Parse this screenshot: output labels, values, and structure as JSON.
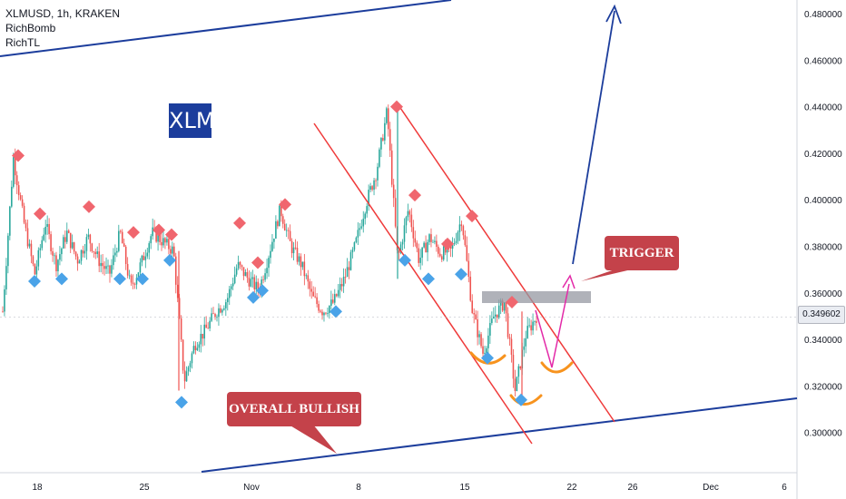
{
  "legend": {
    "symbol": "XLMUSD, 1h, KRAKEN",
    "indicators": [
      "RichBomb",
      "RichTL"
    ]
  },
  "badge": {
    "text": "XLM"
  },
  "callouts": {
    "trigger": "TRIGGER",
    "overall": "OVERALL BULLISH"
  },
  "price_tag": "0.349602",
  "colors": {
    "up": "#26a69a",
    "down": "#ef5350",
    "trendline": "#1c3d9c",
    "channel": "#ef3a3a",
    "projection": "#e32aa8",
    "cup": "#f7931e",
    "zone": "#9598a1",
    "callout": "#c4424a",
    "sell_marker": "#f0666e",
    "buy_marker": "#4aa3e8"
  },
  "chart_data": {
    "type": "candlestick",
    "timeframe": "1h",
    "y_ticks": [
      "0.480000",
      "0.460000",
      "0.440000",
      "0.420000",
      "0.400000",
      "0.380000",
      "0.360000",
      "0.340000",
      "0.320000",
      "0.300000"
    ],
    "x_ticks": [
      "18",
      "25",
      "Nov",
      "8",
      "15",
      "22",
      "26",
      "Dec",
      "6"
    ],
    "ylim": [
      0.283,
      0.492
    ],
    "last_price": 0.349602,
    "price_path": [
      {
        "x": "Oct 14",
        "y": 0.352
      },
      {
        "x": "Oct 16",
        "y": 0.418
      },
      {
        "x": "Oct 17",
        "y": 0.39
      },
      {
        "x": "Oct 18",
        "y": 0.368
      },
      {
        "x": "Oct 19",
        "y": 0.39
      },
      {
        "x": "Oct 20",
        "y": 0.372
      },
      {
        "x": "Oct 21",
        "y": 0.386
      },
      {
        "x": "Oct 22",
        "y": 0.374
      },
      {
        "x": "Oct 23",
        "y": 0.384
      },
      {
        "x": "Oct 24",
        "y": 0.374
      },
      {
        "x": "Oct 25",
        "y": 0.368
      },
      {
        "x": "Oct 26",
        "y": 0.386
      },
      {
        "x": "Oct 27",
        "y": 0.362
      },
      {
        "x": "Oct 28",
        "y": 0.373
      },
      {
        "x": "Oct 29",
        "y": 0.386
      },
      {
        "x": "Oct 30",
        "y": 0.382
      },
      {
        "x": "Oct 31",
        "y": 0.378
      },
      {
        "x": "Oct 32",
        "y": 0.322
      },
      {
        "x": "Oct 33",
        "y": 0.338
      },
      {
        "x": "Oct 34",
        "y": 0.344
      },
      {
        "x": "Oct 35",
        "y": 0.352
      },
      {
        "x": "Oct 36",
        "y": 0.357
      },
      {
        "x": "Oct 37",
        "y": 0.372
      },
      {
        "x": "Oct 38",
        "y": 0.366
      },
      {
        "x": "Oct 39",
        "y": 0.361
      },
      {
        "x": "Oct 40",
        "y": 0.378
      },
      {
        "x": "Oct 41",
        "y": 0.396
      },
      {
        "x": "Oct 42",
        "y": 0.38
      },
      {
        "x": "Oct 43",
        "y": 0.372
      },
      {
        "x": "Oct 44",
        "y": 0.358
      },
      {
        "x": "Oct 45",
        "y": 0.352
      },
      {
        "x": "Oct 46",
        "y": 0.356
      },
      {
        "x": "Oct 47",
        "y": 0.366
      },
      {
        "x": "Oct 48",
        "y": 0.38
      },
      {
        "x": "Oct 49",
        "y": 0.398
      },
      {
        "x": "Oct 50",
        "y": 0.412
      },
      {
        "x": "Oct 51",
        "y": 0.438
      },
      {
        "x": "Oct 52",
        "y": 0.374
      },
      {
        "x": "Oct 53",
        "y": 0.396
      },
      {
        "x": "Oct 54",
        "y": 0.374
      },
      {
        "x": "Oct 55",
        "y": 0.384
      },
      {
        "x": "Oct 56",
        "y": 0.377
      },
      {
        "x": "Oct 57",
        "y": 0.378
      },
      {
        "x": "Oct 58",
        "y": 0.392
      },
      {
        "x": "Oct 59",
        "y": 0.352
      },
      {
        "x": "Oct 60",
        "y": 0.334
      },
      {
        "x": "Oct 61",
        "y": 0.35
      },
      {
        "x": "Oct 62",
        "y": 0.356
      },
      {
        "x": "Oct 63",
        "y": 0.318
      },
      {
        "x": "Oct 64",
        "y": 0.342
      },
      {
        "x": "Oct 65",
        "y": 0.35
      }
    ],
    "sell_markers": [
      {
        "x": 20,
        "y": 0.419
      },
      {
        "x": 44,
        "y": 0.394
      },
      {
        "x": 98,
        "y": 0.397
      },
      {
        "x": 147,
        "y": 0.386
      },
      {
        "x": 175,
        "y": 0.387
      },
      {
        "x": 189,
        "y": 0.385
      },
      {
        "x": 264,
        "y": 0.39
      },
      {
        "x": 284,
        "y": 0.373
      },
      {
        "x": 314,
        "y": 0.398
      },
      {
        "x": 437,
        "y": 0.44
      },
      {
        "x": 457,
        "y": 0.402
      },
      {
        "x": 493,
        "y": 0.381
      },
      {
        "x": 520,
        "y": 0.393
      },
      {
        "x": 564,
        "y": 0.356
      }
    ],
    "buy_markers": [
      {
        "x": 38,
        "y": 0.365
      },
      {
        "x": 68,
        "y": 0.366
      },
      {
        "x": 132,
        "y": 0.366
      },
      {
        "x": 157,
        "y": 0.366
      },
      {
        "x": 187,
        "y": 0.374
      },
      {
        "x": 200,
        "y": 0.313
      },
      {
        "x": 279,
        "y": 0.358
      },
      {
        "x": 289,
        "y": 0.361
      },
      {
        "x": 370,
        "y": 0.352
      },
      {
        "x": 446,
        "y": 0.374
      },
      {
        "x": 472,
        "y": 0.366
      },
      {
        "x": 508,
        "y": 0.368
      },
      {
        "x": 537,
        "y": 0.332
      },
      {
        "x": 574,
        "y": 0.314
      }
    ]
  }
}
